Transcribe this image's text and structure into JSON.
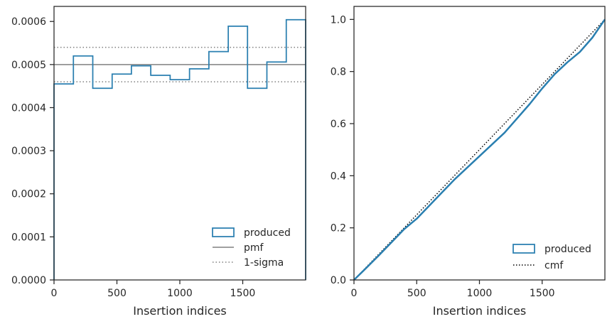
{
  "colors": {
    "produced": "#2a7fb0",
    "pmf": "#808080",
    "sigma": "#808080",
    "cmf": "#000000",
    "axis": "#262626"
  },
  "chart_data": [
    {
      "type": "histogram-step",
      "xlabel": "Insertion indices",
      "ylabel": "",
      "xlim": [
        0,
        2000
      ],
      "ylim": [
        0,
        0.000635
      ],
      "xticks": [
        0,
        500,
        1000,
        1500
      ],
      "xtick_labels": [
        "0",
        "500",
        "1000",
        "1500"
      ],
      "yticks": [
        0,
        0.0001,
        0.0002,
        0.0003,
        0.0004,
        0.0005,
        0.0006
      ],
      "ytick_labels": [
        "0.0000",
        "0.0001",
        "0.0002",
        "0.0003",
        "0.0004",
        "0.0005",
        "0.0006"
      ],
      "bin_edges": [
        0,
        154,
        308,
        462,
        615,
        769,
        923,
        1077,
        1231,
        1385,
        1538,
        1692,
        1846,
        2000
      ],
      "series": [
        {
          "name": "produced",
          "style": "step",
          "values": [
            0.000455,
            0.00052,
            0.000445,
            0.000478,
            0.000497,
            0.000475,
            0.000465,
            0.00049,
            0.00053,
            0.000589,
            0.000445,
            0.000506,
            0.000604
          ]
        },
        {
          "name": "pmf",
          "style": "hline-solid",
          "y": 0.0005
        },
        {
          "name": "1-sigma",
          "style": "hline-dotted",
          "y": [
            0.00046,
            0.00054
          ]
        }
      ],
      "legend": {
        "position": "lower-right",
        "entries": [
          {
            "label": "produced",
            "style": "box"
          },
          {
            "label": "pmf",
            "style": "solid"
          },
          {
            "label": "1-sigma",
            "style": "dotted"
          }
        ]
      }
    },
    {
      "type": "line",
      "xlabel": "Insertion indices",
      "ylabel": "",
      "xlim": [
        0,
        2000
      ],
      "ylim": [
        0,
        1.05
      ],
      "xticks": [
        0,
        500,
        1000,
        1500
      ],
      "xtick_labels": [
        "0",
        "500",
        "1000",
        "1500"
      ],
      "yticks": [
        0,
        0.2,
        0.4,
        0.6,
        0.8,
        1.0
      ],
      "ytick_labels": [
        "0.0",
        "0.2",
        "0.4",
        "0.6",
        "0.8",
        "1.0"
      ],
      "series": [
        {
          "name": "produced",
          "style": "solid-thick",
          "x": [
            0,
            100,
            200,
            300,
            400,
            500,
            600,
            700,
            800,
            900,
            1000,
            1100,
            1200,
            1300,
            1400,
            1500,
            1600,
            1700,
            1800,
            1900,
            2000
          ],
          "values": [
            0,
            0.047,
            0.095,
            0.145,
            0.195,
            0.235,
            0.285,
            0.335,
            0.385,
            0.43,
            0.475,
            0.52,
            0.565,
            0.62,
            0.675,
            0.735,
            0.79,
            0.835,
            0.875,
            0.93,
            1.0
          ]
        },
        {
          "name": "cmf",
          "style": "dotted",
          "x": [
            0,
            2000
          ],
          "values": [
            0,
            1.0
          ]
        }
      ],
      "legend": {
        "position": "lower-right",
        "entries": [
          {
            "label": "produced",
            "style": "box"
          },
          {
            "label": "cmf",
            "style": "dotted"
          }
        ]
      }
    }
  ]
}
